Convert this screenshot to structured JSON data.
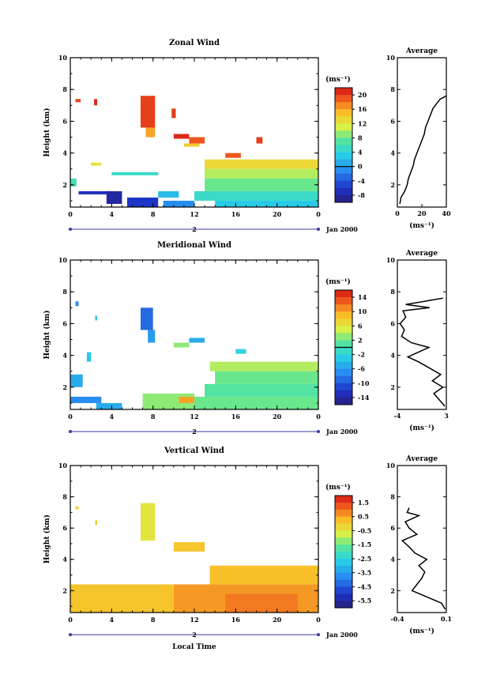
{
  "chart_data": [
    {
      "type": "heatmap",
      "title": "Zonal Wind",
      "ylabel": "Height (km)",
      "unit_label": "(ms⁻¹)",
      "date_label": "Jan 2000",
      "day_label": "2",
      "xlim": [
        0,
        24
      ],
      "ylim": [
        0.6,
        10
      ],
      "x_ticks": [
        "0",
        "4",
        "8",
        "12",
        "16",
        "20",
        "0"
      ],
      "y_ticks": [
        "2",
        "4",
        "6",
        "8",
        "10"
      ],
      "colorbar_ticks": [
        "20",
        "16",
        "12",
        "8",
        "4",
        "0",
        "-4",
        "-8"
      ],
      "colorbar_range": [
        -10,
        22
      ],
      "zero_line_value": 0,
      "cells": [
        {
          "x0": 0.5,
          "x1": 1.0,
          "y0": 7.2,
          "y1": 7.4,
          "v": 20
        },
        {
          "x0": 2.3,
          "x1": 2.6,
          "y0": 7.0,
          "y1": 7.4,
          "v": 21
        },
        {
          "x0": 6.8,
          "x1": 8.2,
          "y0": 5.6,
          "y1": 7.6,
          "v": 20
        },
        {
          "x0": 7.3,
          "x1": 8.2,
          "y0": 5.0,
          "y1": 5.6,
          "v": 16
        },
        {
          "x0": 9.8,
          "x1": 10.2,
          "y0": 6.2,
          "y1": 6.8,
          "v": 20
        },
        {
          "x0": 10.0,
          "x1": 11.5,
          "y0": 4.9,
          "y1": 5.2,
          "v": 21
        },
        {
          "x0": 11.5,
          "x1": 13.0,
          "y0": 4.6,
          "y1": 5.0,
          "v": 19
        },
        {
          "x0": 11.0,
          "x1": 12.5,
          "y0": 4.4,
          "y1": 4.6,
          "v": 14
        },
        {
          "x0": 15.0,
          "x1": 16.5,
          "y0": 3.7,
          "y1": 4.0,
          "v": 19
        },
        {
          "x0": 18.0,
          "x1": 18.6,
          "y0": 4.6,
          "y1": 5.0,
          "v": 20
        },
        {
          "x0": 13.0,
          "x1": 24.0,
          "y0": 3.0,
          "y1": 3.6,
          "v": 13
        },
        {
          "x0": 13.0,
          "x1": 24.0,
          "y0": 2.4,
          "y1": 3.0,
          "v": 10
        },
        {
          "x0": 13.0,
          "x1": 24.0,
          "y0": 1.6,
          "y1": 2.4,
          "v": 8
        },
        {
          "x0": 12.0,
          "x1": 24.0,
          "y0": 1.0,
          "y1": 1.6,
          "v": 5
        },
        {
          "x0": 14.0,
          "x1": 24.0,
          "y0": 0.6,
          "y1": 1.0,
          "v": 3
        },
        {
          "x0": 4.0,
          "x1": 8.5,
          "y0": 2.6,
          "y1": 2.8,
          "v": 5
        },
        {
          "x0": 0.0,
          "x1": 0.6,
          "y0": 1.9,
          "y1": 2.4,
          "v": 6
        },
        {
          "x0": 2.0,
          "x1": 3.0,
          "y0": 3.2,
          "y1": 3.4,
          "v": 12
        },
        {
          "x0": 0.8,
          "x1": 4.0,
          "y0": 1.4,
          "y1": 1.6,
          "v": -7
        },
        {
          "x0": 3.5,
          "x1": 5.0,
          "y0": 0.8,
          "y1": 1.6,
          "v": -8
        },
        {
          "x0": 5.5,
          "x1": 8.5,
          "y0": 0.6,
          "y1": 1.2,
          "v": -6
        },
        {
          "x0": 8.5,
          "x1": 10.5,
          "y0": 1.2,
          "y1": 1.6,
          "v": 2
        },
        {
          "x0": 9.0,
          "x1": 12.0,
          "y0": 0.6,
          "y1": 1.0,
          "v": -1
        }
      ],
      "average": {
        "xlim": [
          0,
          40
        ],
        "x_ticks": [
          "0",
          "20",
          "40"
        ],
        "profile_x": [
          2,
          3,
          6,
          8,
          9,
          11,
          13,
          14,
          16,
          18,
          20,
          22,
          23,
          25,
          27,
          29,
          31,
          33,
          35,
          40
        ],
        "profile_y": [
          0.8,
          1.2,
          1.6,
          2.0,
          2.4,
          2.8,
          3.2,
          3.6,
          4.0,
          4.4,
          4.8,
          5.2,
          5.6,
          6.0,
          6.4,
          6.8,
          7.0,
          7.2,
          7.4,
          7.6
        ]
      }
    },
    {
      "type": "heatmap",
      "title": "Meridional Wind",
      "ylabel": "Height (km)",
      "unit_label": "(ms⁻¹)",
      "date_label": "Jan 2000",
      "day_label": "2",
      "xlim": [
        0,
        24
      ],
      "ylim": [
        0.6,
        10
      ],
      "x_ticks": [
        "0",
        "4",
        "8",
        "12",
        "16",
        "20",
        "0"
      ],
      "y_ticks": [
        "2",
        "4",
        "6",
        "8",
        "10"
      ],
      "colorbar_ticks": [
        "14",
        "10",
        "6",
        "2",
        "-2",
        "-6",
        "-10",
        "-14"
      ],
      "colorbar_range": [
        -16,
        16
      ],
      "zero_line_value": 0,
      "cells": [
        {
          "x0": 0.5,
          "x1": 0.8,
          "y0": 7.1,
          "y1": 7.4,
          "v": -7
        },
        {
          "x0": 2.4,
          "x1": 2.6,
          "y0": 6.2,
          "y1": 6.5,
          "v": -3
        },
        {
          "x0": 6.8,
          "x1": 8.0,
          "y0": 5.6,
          "y1": 7.0,
          "v": -9
        },
        {
          "x0": 7.5,
          "x1": 8.2,
          "y0": 4.8,
          "y1": 5.6,
          "v": -6
        },
        {
          "x0": 11.5,
          "x1": 13.0,
          "y0": 4.8,
          "y1": 5.1,
          "v": -5
        },
        {
          "x0": 10.0,
          "x1": 11.5,
          "y0": 4.5,
          "y1": 4.8,
          "v": 3
        },
        {
          "x0": 16.0,
          "x1": 17.0,
          "y0": 4.1,
          "y1": 4.4,
          "v": -2
        },
        {
          "x0": 13.5,
          "x1": 24.0,
          "y0": 3.0,
          "y1": 3.6,
          "v": 4
        },
        {
          "x0": 14.0,
          "x1": 24.0,
          "y0": 2.2,
          "y1": 3.0,
          "v": 2
        },
        {
          "x0": 13.0,
          "x1": 24.0,
          "y0": 1.4,
          "y1": 2.2,
          "v": 1
        },
        {
          "x0": 12.0,
          "x1": 24.0,
          "y0": 0.6,
          "y1": 1.4,
          "v": 2
        },
        {
          "x0": 7.0,
          "x1": 12.0,
          "y0": 0.6,
          "y1": 1.6,
          "v": 3
        },
        {
          "x0": 10.5,
          "x1": 12.0,
          "y0": 1.0,
          "y1": 1.4,
          "v": 10
        },
        {
          "x0": 0.0,
          "x1": 1.2,
          "y0": 2.0,
          "y1": 2.8,
          "v": -5
        },
        {
          "x0": 1.6,
          "x1": 2.0,
          "y0": 3.6,
          "y1": 4.2,
          "v": -3
        },
        {
          "x0": 0.0,
          "x1": 3.0,
          "y0": 1.0,
          "y1": 1.4,
          "v": -7
        },
        {
          "x0": 2.5,
          "x1": 5.0,
          "y0": 0.6,
          "y1": 1.0,
          "v": -5
        }
      ],
      "average": {
        "xlim": [
          -4,
          3
        ],
        "x_ticks": [
          "-4",
          "3"
        ],
        "profile_x": [
          2.8,
          2.0,
          1.2,
          2.5,
          1.0,
          2.2,
          0.6,
          -1.0,
          -2.5,
          -1.0,
          0.5,
          -2.0,
          -3.4,
          -3.0,
          -3.6,
          -2.8,
          -3.2,
          0.6,
          -2.8,
          2.5
        ],
        "profile_y": [
          0.8,
          1.2,
          1.6,
          2.0,
          2.4,
          2.8,
          3.2,
          3.6,
          3.9,
          4.2,
          4.5,
          4.8,
          5.2,
          5.6,
          6.0,
          6.4,
          6.8,
          7.0,
          7.2,
          7.6
        ]
      }
    },
    {
      "type": "heatmap",
      "title": "Vertical Wind",
      "ylabel": "Height (km)",
      "xlabel": "Local Time",
      "unit_label": "(ms⁻¹)",
      "date_label": "Jan 2000",
      "day_label": "2",
      "xlim": [
        0,
        24
      ],
      "ylim": [
        0.6,
        10
      ],
      "x_ticks": [
        "0",
        "4",
        "8",
        "12",
        "16",
        "20",
        "0"
      ],
      "y_ticks": [
        "2",
        "4",
        "6",
        "8",
        "10"
      ],
      "colorbar_ticks": [
        "1.5",
        "0.5",
        "-0.5",
        "-1.5",
        "-2.5",
        "-3.5",
        "-4.5",
        "-5.5"
      ],
      "colorbar_range": [
        -6,
        2
      ],
      "zero_line_value": null,
      "cells": [
        {
          "x0": 6.8,
          "x1": 8.2,
          "y0": 5.2,
          "y1": 7.6,
          "v": -0.5
        },
        {
          "x0": 0.5,
          "x1": 0.8,
          "y0": 7.2,
          "y1": 7.4,
          "v": 0.0
        },
        {
          "x0": 2.4,
          "x1": 2.6,
          "y0": 6.2,
          "y1": 6.5,
          "v": 0.0
        },
        {
          "x0": 10.0,
          "x1": 13.0,
          "y0": 4.5,
          "y1": 5.1,
          "v": 0.1
        },
        {
          "x0": 13.5,
          "x1": 24.0,
          "y0": 2.4,
          "y1": 3.6,
          "v": 0.2
        },
        {
          "x0": 10.0,
          "x1": 24.0,
          "y0": 0.6,
          "y1": 2.4,
          "v": 0.6
        },
        {
          "x0": 0.0,
          "x1": 10.0,
          "y0": 0.6,
          "y1": 2.4,
          "v": 0.1
        },
        {
          "x0": 15.0,
          "x1": 22.0,
          "y0": 0.6,
          "y1": 1.8,
          "v": 0.9
        }
      ],
      "average": {
        "xlim": [
          -0.4,
          0.1
        ],
        "x_ticks": [
          "-0.4",
          "0.1"
        ],
        "profile_x": [
          0.09,
          0.05,
          -0.1,
          -0.25,
          -0.2,
          -0.15,
          -0.12,
          -0.18,
          -0.1,
          -0.22,
          -0.28,
          -0.35,
          -0.2,
          -0.28,
          -0.32,
          -0.18,
          -0.3,
          -0.28
        ],
        "profile_y": [
          0.8,
          1.2,
          1.6,
          2.0,
          2.4,
          2.8,
          3.2,
          3.6,
          4.0,
          4.4,
          4.8,
          5.2,
          5.6,
          6.0,
          6.4,
          6.8,
          7.0,
          7.3
        ]
      }
    }
  ],
  "average_title": "Average",
  "average_xlabel": "(ms⁻¹)"
}
